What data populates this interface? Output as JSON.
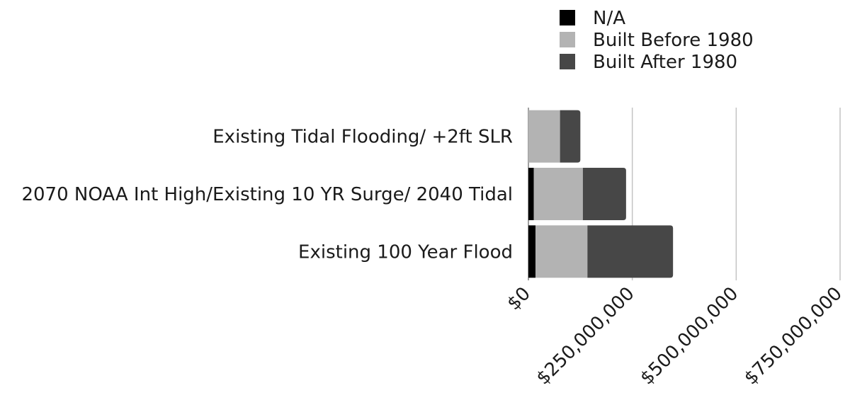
{
  "chart_data": {
    "type": "bar",
    "orientation": "horizontal",
    "stacked": true,
    "title": "",
    "xlabel": "",
    "ylabel": "",
    "categories": [
      "Existing Tidal Flooding/ +2ft SLR",
      "2070 NOAA Int High/Existing 10 YR Surge/ 2040 Tidal",
      "Existing 100 Year Flood"
    ],
    "series": [
      {
        "name": "N/A",
        "color": "#000000",
        "values": [
          0,
          13000000,
          17000000
        ]
      },
      {
        "name": "Built Before 1980",
        "color": "#b3b3b3",
        "values": [
          76000000,
          118000000,
          125000000
        ]
      },
      {
        "name": "Built After 1980",
        "color": "#474747",
        "values": [
          49000000,
          104000000,
          206000000
        ]
      }
    ],
    "xlim": [
      0,
      750000000
    ],
    "ticks": [
      0,
      250000000,
      500000000,
      750000000
    ],
    "tick_labels": [
      "$0",
      "$250,000,000",
      "$500,000,000",
      "$750,000,000"
    ],
    "grid": "vertical",
    "legend_position": "top-right"
  }
}
